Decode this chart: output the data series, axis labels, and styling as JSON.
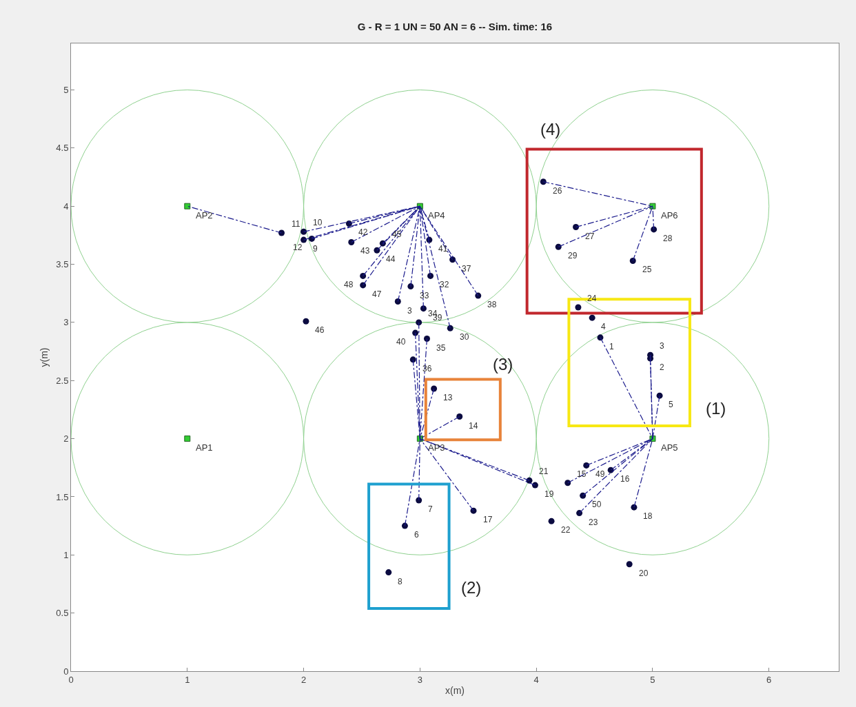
{
  "chart_data": {
    "type": "scatter",
    "title": "G - R = 1 UN = 50 AN = 6 -- Sim. time: 16",
    "xlabel": "x(m)",
    "ylabel": "y(m)",
    "xlim": [
      0,
      6.6
    ],
    "ylim": [
      0,
      5.4
    ],
    "xticks": [
      0,
      1,
      2,
      3,
      4,
      5,
      6
    ],
    "yticks": [
      0,
      0.5,
      1,
      1.5,
      2,
      2.5,
      3,
      3.5,
      4,
      4.5,
      5
    ],
    "grid": false,
    "line_style": "dashed",
    "series": [
      {
        "color": "#0b0b40",
        "marker": "circle",
        "x": [
          4.55,
          4.98,
          4.98,
          4.48,
          5.06,
          2.87,
          2.99,
          2.73,
          2.0,
          2.0,
          1.81,
          2.07,
          3.12,
          3.34,
          4.27,
          4.64,
          3.46,
          4.84,
          3.99,
          4.8,
          3.94,
          4.13,
          4.37,
          4.36,
          4.83,
          4.06,
          4.34,
          5.01,
          4.19,
          3.26,
          2.81,
          3.09,
          2.92,
          2.99,
          3.06,
          2.94,
          3.28,
          3.5,
          3.03,
          2.96,
          3.08,
          2.39,
          2.41,
          2.63,
          2.68,
          2.02,
          2.51,
          2.51,
          4.43,
          4.4
        ],
        "values": [
          2.87,
          2.69,
          2.72,
          3.04,
          2.37,
          1.25,
          1.47,
          0.85,
          3.71,
          3.78,
          3.77,
          3.72,
          2.43,
          2.19,
          1.62,
          1.73,
          1.38,
          1.41,
          1.6,
          0.92,
          1.64,
          1.29,
          1.36,
          3.13,
          3.53,
          4.21,
          3.82,
          3.8,
          3.65,
          2.95,
          3.18,
          3.4,
          3.31,
          3.0,
          2.86,
          2.68,
          3.54,
          3.23,
          3.12,
          2.91,
          3.71,
          3.85,
          3.69,
          3.62,
          3.68,
          3.01,
          3.32,
          3.4,
          1.77,
          1.51
        ]
      },
      {
        "color": "#33cc33",
        "marker": "square",
        "x": [
          1,
          1,
          3,
          3,
          5,
          5
        ],
        "values": [
          2,
          4,
          2,
          4,
          2,
          4
        ]
      },
      {
        "type": "line",
        "color": "#1a1a8c",
        "x": [
          1.81,
          1
        ],
        "values": [
          3.77,
          4
        ]
      },
      {
        "type": "line",
        "color": "#1a1a8c",
        "x": [
          2.0,
          3
        ],
        "values": [
          3.71,
          4
        ]
      },
      {
        "type": "line",
        "color": "#1a1a8c",
        "x": [
          2.0,
          3
        ],
        "values": [
          3.78,
          4
        ]
      },
      {
        "type": "line",
        "color": "#1a1a8c",
        "x": [
          2.07,
          3
        ],
        "values": [
          3.72,
          4
        ]
      },
      {
        "type": "line",
        "color": "#1a1a8c",
        "x": [
          2.39,
          3
        ],
        "values": [
          3.85,
          4
        ]
      },
      {
        "type": "line",
        "color": "#1a1a8c",
        "x": [
          2.41,
          3
        ],
        "values": [
          3.69,
          4
        ]
      },
      {
        "type": "line",
        "color": "#1a1a8c",
        "x": [
          2.63,
          3
        ],
        "values": [
          3.62,
          4
        ]
      },
      {
        "type": "line",
        "color": "#1a1a8c",
        "x": [
          2.68,
          3
        ],
        "values": [
          3.68,
          4
        ]
      },
      {
        "type": "line",
        "color": "#1a1a8c",
        "x": [
          2.51,
          3
        ],
        "values": [
          3.32,
          4
        ]
      },
      {
        "type": "line",
        "color": "#1a1a8c",
        "x": [
          2.51,
          3
        ],
        "values": [
          3.4,
          4
        ]
      },
      {
        "type": "line",
        "color": "#1a1a8c",
        "x": [
          2.81,
          3
        ],
        "values": [
          3.18,
          4
        ]
      },
      {
        "type": "line",
        "color": "#1a1a8c",
        "x": [
          2.92,
          3
        ],
        "values": [
          3.31,
          4
        ]
      },
      {
        "type": "line",
        "color": "#1a1a8c",
        "x": [
          3.03,
          3
        ],
        "values": [
          3.12,
          4
        ]
      },
      {
        "type": "line",
        "color": "#1a1a8c",
        "x": [
          3.09,
          3
        ],
        "values": [
          3.4,
          4
        ]
      },
      {
        "type": "line",
        "color": "#1a1a8c",
        "x": [
          3.08,
          3
        ],
        "values": [
          3.71,
          4
        ]
      },
      {
        "type": "line",
        "color": "#1a1a8c",
        "x": [
          3.28,
          3
        ],
        "values": [
          3.54,
          4
        ]
      },
      {
        "type": "line",
        "color": "#1a1a8c",
        "x": [
          3.5,
          3
        ],
        "values": [
          3.23,
          4
        ]
      },
      {
        "type": "line",
        "color": "#1a1a8c",
        "x": [
          3.26,
          3
        ],
        "values": [
          2.95,
          4
        ]
      },
      {
        "type": "line",
        "color": "#1a1a8c",
        "x": [
          2.87,
          3
        ],
        "values": [
          1.25,
          2
        ]
      },
      {
        "type": "line",
        "color": "#1a1a8c",
        "x": [
          2.99,
          3
        ],
        "values": [
          1.47,
          2
        ]
      },
      {
        "type": "line",
        "color": "#1a1a8c",
        "x": [
          3.46,
          3
        ],
        "values": [
          1.38,
          2
        ]
      },
      {
        "type": "line",
        "color": "#1a1a8c",
        "x": [
          3.94,
          3
        ],
        "values": [
          1.64,
          2
        ]
      },
      {
        "type": "line",
        "color": "#1a1a8c",
        "x": [
          3.99,
          3
        ],
        "values": [
          1.6,
          2
        ]
      },
      {
        "type": "line",
        "color": "#1a1a8c",
        "x": [
          3.12,
          3
        ],
        "values": [
          2.43,
          2
        ]
      },
      {
        "type": "line",
        "color": "#1a1a8c",
        "x": [
          3.34,
          3
        ],
        "values": [
          2.19,
          2
        ]
      },
      {
        "type": "line",
        "color": "#1a1a8c",
        "x": [
          2.99,
          3
        ],
        "values": [
          3.0,
          2
        ]
      },
      {
        "type": "line",
        "color": "#1a1a8c",
        "x": [
          2.96,
          3
        ],
        "values": [
          2.91,
          2
        ]
      },
      {
        "type": "line",
        "color": "#1a1a8c",
        "x": [
          3.06,
          3
        ],
        "values": [
          2.86,
          2
        ]
      },
      {
        "type": "line",
        "color": "#1a1a8c",
        "x": [
          2.94,
          3
        ],
        "values": [
          2.68,
          2
        ]
      },
      {
        "type": "line",
        "color": "#1a1a8c",
        "x": [
          4.55,
          5
        ],
        "values": [
          2.87,
          2
        ]
      },
      {
        "type": "line",
        "color": "#1a1a8c",
        "x": [
          4.98,
          5
        ],
        "values": [
          2.69,
          2
        ]
      },
      {
        "type": "line",
        "color": "#1a1a8c",
        "x": [
          4.98,
          5
        ],
        "values": [
          2.72,
          2
        ]
      },
      {
        "type": "line",
        "color": "#1a1a8c",
        "x": [
          5.06,
          5
        ],
        "values": [
          2.37,
          2
        ]
      },
      {
        "type": "line",
        "color": "#1a1a8c",
        "x": [
          4.27,
          5
        ],
        "values": [
          1.62,
          2
        ]
      },
      {
        "type": "line",
        "color": "#1a1a8c",
        "x": [
          4.64,
          5
        ],
        "values": [
          1.73,
          2
        ]
      },
      {
        "type": "line",
        "color": "#1a1a8c",
        "x": [
          4.43,
          5
        ],
        "values": [
          1.77,
          2
        ]
      },
      {
        "type": "line",
        "color": "#1a1a8c",
        "x": [
          4.4,
          5
        ],
        "values": [
          1.51,
          2
        ]
      },
      {
        "type": "line",
        "color": "#1a1a8c",
        "x": [
          4.37,
          5
        ],
        "values": [
          1.36,
          2
        ]
      },
      {
        "type": "line",
        "color": "#1a1a8c",
        "x": [
          4.84,
          5
        ],
        "values": [
          1.41,
          2
        ]
      },
      {
        "type": "line",
        "color": "#1a1a8c",
        "x": [
          4.06,
          5
        ],
        "values": [
          4.21,
          4
        ]
      },
      {
        "type": "line",
        "color": "#1a1a8c",
        "x": [
          4.34,
          5
        ],
        "values": [
          3.82,
          4
        ]
      },
      {
        "type": "line",
        "color": "#1a1a8c",
        "x": [
          4.19,
          5
        ],
        "values": [
          3.65,
          4
        ]
      },
      {
        "type": "line",
        "color": "#1a1a8c",
        "x": [
          4.83,
          5
        ],
        "values": [
          3.53,
          4
        ]
      },
      {
        "type": "line",
        "color": "#1a1a8c",
        "x": [
          5.01,
          5
        ],
        "values": [
          3.8,
          4
        ]
      }
    ],
    "annotations": [
      "(4)",
      "(1)",
      "(3)",
      "(2)",
      {
        "text": "1",
        "x": 4.55,
        "y": 2.87
      },
      {
        "text": "2",
        "x": 4.98,
        "y": 2.69
      },
      {
        "text": "3",
        "x": 4.98,
        "y": 2.72
      },
      {
        "text": "4",
        "x": 4.48,
        "y": 3.04
      },
      {
        "text": "5",
        "x": 5.06,
        "y": 2.37
      },
      {
        "text": "6",
        "x": 2.87,
        "y": 1.25
      },
      {
        "text": "7",
        "x": 2.99,
        "y": 1.47
      },
      {
        "text": "8",
        "x": 2.73,
        "y": 0.85
      },
      {
        "text": "9",
        "x": 2.0,
        "y": 3.71
      },
      {
        "text": "10",
        "x": 2.0,
        "y": 3.78
      },
      {
        "text": "11",
        "x": 1.81,
        "y": 3.77
      },
      {
        "text": "12",
        "x": 2.07,
        "y": 3.72
      },
      {
        "text": "13",
        "x": 3.12,
        "y": 2.43
      },
      {
        "text": "14",
        "x": 3.34,
        "y": 2.19
      },
      {
        "text": "15",
        "x": 4.27,
        "y": 1.62
      },
      {
        "text": "16",
        "x": 4.64,
        "y": 1.73
      },
      {
        "text": "17",
        "x": 3.46,
        "y": 1.38
      },
      {
        "text": "18",
        "x": 4.84,
        "y": 1.41
      },
      {
        "text": "19",
        "x": 3.99,
        "y": 1.6
      },
      {
        "text": "20",
        "x": 4.8,
        "y": 0.92
      },
      {
        "text": "21",
        "x": 3.94,
        "y": 1.64
      },
      {
        "text": "22",
        "x": 4.13,
        "y": 1.29
      },
      {
        "text": "23",
        "x": 4.37,
        "y": 1.36
      },
      {
        "text": "24",
        "x": 4.36,
        "y": 3.13
      },
      {
        "text": "25",
        "x": 4.83,
        "y": 3.53
      },
      {
        "text": "26",
        "x": 4.06,
        "y": 4.21
      },
      {
        "text": "27",
        "x": 4.34,
        "y": 3.82
      },
      {
        "text": "28",
        "x": 5.01,
        "y": 3.8
      },
      {
        "text": "29",
        "x": 4.19,
        "y": 3.65
      },
      {
        "text": "30",
        "x": 3.26,
        "y": 2.95
      },
      {
        "text": "3",
        "x": 2.81,
        "y": 3.18
      },
      {
        "text": "32",
        "x": 3.09,
        "y": 3.4
      },
      {
        "text": "33",
        "x": 2.92,
        "y": 3.31
      },
      {
        "text": "34",
        "x": 2.99,
        "y": 3.0
      },
      {
        "text": "35",
        "x": 3.06,
        "y": 2.86
      },
      {
        "text": "36",
        "x": 2.94,
        "y": 2.68
      },
      {
        "text": "37",
        "x": 3.28,
        "y": 3.54
      },
      {
        "text": "38",
        "x": 3.5,
        "y": 3.23
      },
      {
        "text": "39",
        "x": 3.03,
        "y": 3.12
      },
      {
        "text": "40",
        "x": 2.96,
        "y": 2.91
      },
      {
        "text": "41",
        "x": 3.08,
        "y": 3.71
      },
      {
        "text": "42",
        "x": 2.39,
        "y": 3.85
      },
      {
        "text": "43",
        "x": 2.41,
        "y": 3.69
      },
      {
        "text": "44",
        "x": 2.63,
        "y": 3.62
      },
      {
        "text": "45",
        "x": 2.68,
        "y": 3.68
      },
      {
        "text": "46",
        "x": 2.02,
        "y": 3.01
      },
      {
        "text": "47",
        "x": 2.51,
        "y": 3.32
      },
      {
        "text": "48",
        "x": 2.51,
        "y": 3.4
      },
      {
        "text": "49",
        "x": 4.43,
        "y": 1.77
      },
      {
        "text": "50",
        "x": 4.4,
        "y": 1.51
      },
      {
        "text": "AP1",
        "x": 1,
        "y": 2
      },
      {
        "text": "AP2",
        "x": 1,
        "y": 4
      },
      {
        "text": "AP3",
        "x": 3,
        "y": 2
      },
      {
        "text": "AP4",
        "x": 3,
        "y": 4
      },
      {
        "text": "AP5",
        "x": 5,
        "y": 2
      },
      {
        "text": "AP6",
        "x": 5,
        "y": 4
      }
    ]
  }
}
